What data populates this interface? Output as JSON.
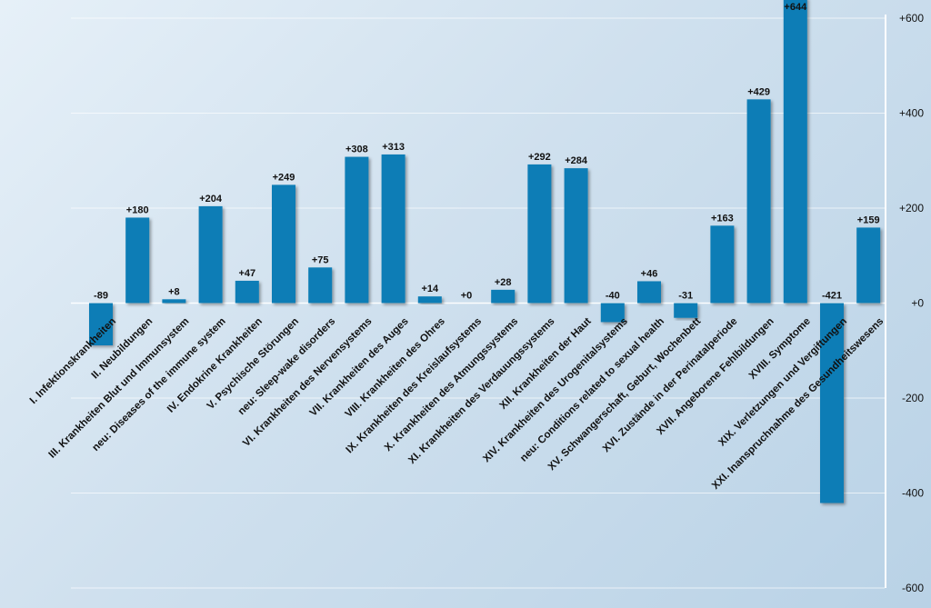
{
  "chart_data": {
    "type": "bar",
    "title": "",
    "xlabel": "",
    "ylabel": "",
    "ylim": [
      -600,
      600
    ],
    "yticks": [
      600,
      400,
      200,
      0,
      -200,
      -400,
      -600
    ],
    "ytick_labels": [
      "+600",
      "+400",
      "+200",
      "+0",
      "-200",
      "-400",
      "-600"
    ],
    "grid": true,
    "y_axis_position": "right",
    "bar_color": "#0a7db6",
    "categories": [
      "I. Infektionskrankheiten",
      "II. Neubildungen",
      "III. Krankheiten Blut und Immunsystem",
      "neu: Diseases of the immune system",
      "IV. Endokrine Krankheiten",
      "V. Psychische Störungen",
      "neu: Sleep-wake disorders",
      "VI. Krankheiten des Nervensystems",
      "VII. Krankheiten des Auges",
      "VIII. Krankheiten des Ohres",
      "IX. Krankheiten des Kreislaufsystems",
      "X. Krankheiten des Atmungssystems",
      "XI. Krankheiten des Verdauungssystems",
      "XII. Krankheiten der Haut",
      "XIV. Krankheiten des Urogenitalsystems",
      "neu: Conditions related to sexual health",
      "XV. Schwangerschaft, Geburt, Wochenbett",
      "XVI. Zustände in der Perinatalperiode",
      "XVII. Angeborene Fehlbildungen",
      "XVIII. Symptome",
      "XIX. Verletzungen und Vergiftungen",
      "XXI. Inanspruchnahme des Gesundheitswesens"
    ],
    "values": [
      -89,
      180,
      8,
      204,
      47,
      249,
      75,
      308,
      313,
      14,
      0,
      28,
      292,
      284,
      -40,
      46,
      -31,
      163,
      429,
      644,
      -421,
      159
    ],
    "value_labels": [
      "-89",
      "+180",
      "+8",
      "+204",
      "+47",
      "+249",
      "+75",
      "+308",
      "+313",
      "+14",
      "+0",
      "+28",
      "+292",
      "+284",
      "-40",
      "+46",
      "-31",
      "+163",
      "+429",
      "+644",
      "-421",
      "+159"
    ]
  }
}
